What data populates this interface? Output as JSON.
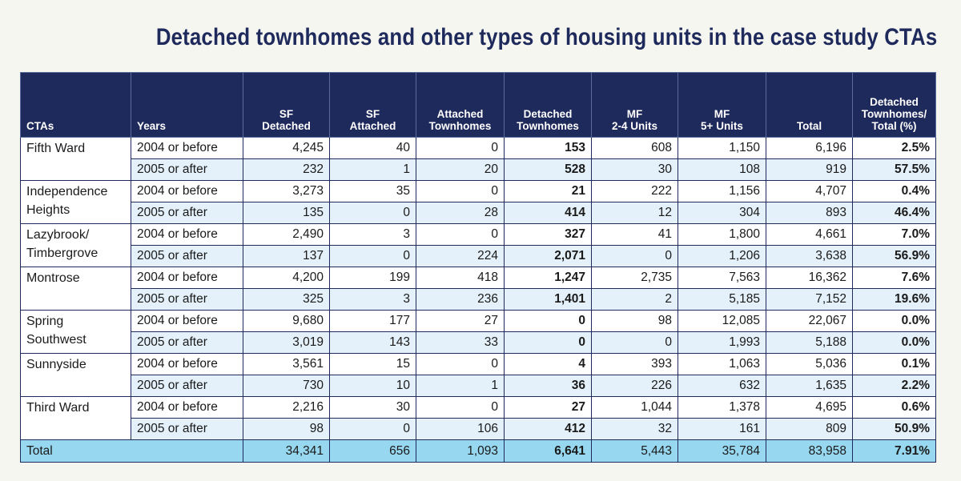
{
  "title": "Detached townhomes and other types of housing units in the case study CTAs",
  "headers": {
    "ctas": "CTAs",
    "years": "Years",
    "sf_detached": [
      "SF",
      "Detached"
    ],
    "sf_attached": [
      "SF",
      "Attached"
    ],
    "attached_townhomes": [
      "Attached",
      "Townhomes"
    ],
    "detached_townhomes": [
      "Detached",
      "Townhomes"
    ],
    "mf_2_4": [
      "MF",
      "2-4 Units"
    ],
    "mf_5plus": [
      "MF",
      "5+ Units"
    ],
    "total": "Total",
    "pct": [
      "Detached",
      "Townhomes/",
      "Total (%)"
    ]
  },
  "rows": [
    {
      "cta": [
        "Fifth Ward"
      ],
      "periods": [
        {
          "years": "2004 or before",
          "v": [
            "4,245",
            "40",
            "0",
            "153",
            "608",
            "1,150",
            "6,196",
            "2.5%"
          ]
        },
        {
          "years": "2005 or after",
          "v": [
            "232",
            "1",
            "20",
            "528",
            "30",
            "108",
            "919",
            "57.5%"
          ]
        }
      ]
    },
    {
      "cta": [
        "Independence",
        "Heights"
      ],
      "periods": [
        {
          "years": "2004 or before",
          "v": [
            "3,273",
            "35",
            "0",
            "21",
            "222",
            "1,156",
            "4,707",
            "0.4%"
          ]
        },
        {
          "years": "2005 or after",
          "v": [
            "135",
            "0",
            "28",
            "414",
            "12",
            "304",
            "893",
            "46.4%"
          ]
        }
      ]
    },
    {
      "cta": [
        "Lazybrook/",
        "Timbergrove"
      ],
      "periods": [
        {
          "years": "2004 or before",
          "v": [
            "2,490",
            "3",
            "0",
            "327",
            "41",
            "1,800",
            "4,661",
            "7.0%"
          ]
        },
        {
          "years": "2005 or after",
          "v": [
            "137",
            "0",
            "224",
            "2,071",
            "0",
            "1,206",
            "3,638",
            "56.9%"
          ]
        }
      ]
    },
    {
      "cta": [
        "Montrose"
      ],
      "periods": [
        {
          "years": "2004 or before",
          "v": [
            "4,200",
            "199",
            "418",
            "1,247",
            "2,735",
            "7,563",
            "16,362",
            "7.6%"
          ]
        },
        {
          "years": "2005 or after",
          "v": [
            "325",
            "3",
            "236",
            "1,401",
            "2",
            "5,185",
            "7,152",
            "19.6%"
          ]
        }
      ]
    },
    {
      "cta": [
        "Spring",
        "Southwest"
      ],
      "periods": [
        {
          "years": "2004 or before",
          "v": [
            "9,680",
            "177",
            "27",
            "0",
            "98",
            "12,085",
            "22,067",
            "0.0%"
          ]
        },
        {
          "years": "2005 or after",
          "v": [
            "3,019",
            "143",
            "33",
            "0",
            "0",
            "1,993",
            "5,188",
            "0.0%"
          ]
        }
      ]
    },
    {
      "cta": [
        "Sunnyside"
      ],
      "periods": [
        {
          "years": "2004 or before",
          "v": [
            "3,561",
            "15",
            "0",
            "4",
            "393",
            "1,063",
            "5,036",
            "0.1%"
          ]
        },
        {
          "years": "2005 or after",
          "v": [
            "730",
            "10",
            "1",
            "36",
            "226",
            "632",
            "1,635",
            "2.2%"
          ]
        }
      ]
    },
    {
      "cta": [
        "Third Ward"
      ],
      "periods": [
        {
          "years": "2004 or before",
          "v": [
            "2,216",
            "30",
            "0",
            "27",
            "1,044",
            "1,378",
            "4,695",
            "0.6%"
          ]
        },
        {
          "years": "2005 or after",
          "v": [
            "98",
            "0",
            "106",
            "412",
            "32",
            "161",
            "809",
            "50.9%"
          ]
        }
      ]
    }
  ],
  "total": {
    "label": "Total",
    "v": [
      "34,341",
      "656",
      "1,093",
      "6,641",
      "5,443",
      "35,784",
      "83,958",
      "7.91%"
    ]
  },
  "colors": {
    "header_bg": "#1f2a5c",
    "title": "#1f2a5c",
    "row_alt": "#e4f1fa",
    "total_row": "#97d8f0",
    "page_bg": "#f6f6f1"
  }
}
